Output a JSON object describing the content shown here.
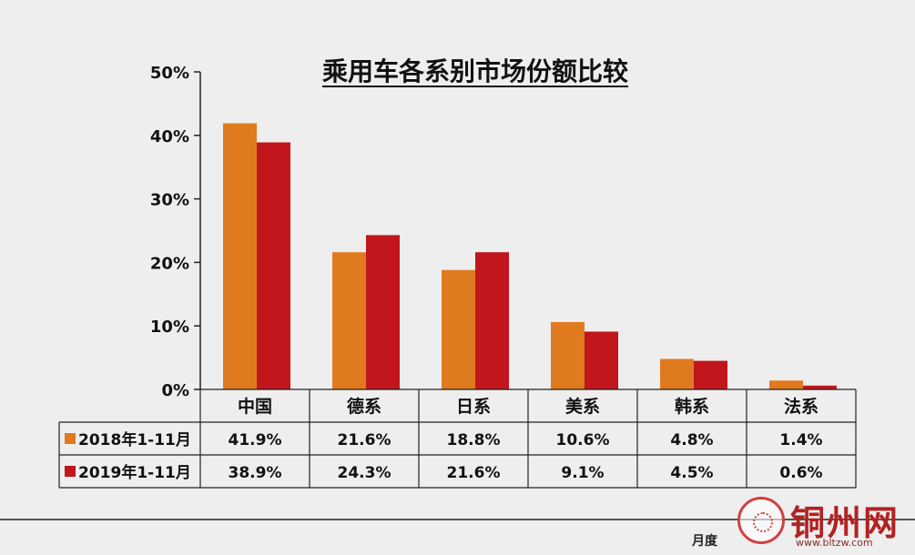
{
  "chart_data": {
    "type": "bar",
    "title": "乘用车各系别市场份额比较",
    "categories": [
      "中国",
      "德系",
      "日系",
      "美系",
      "韩系",
      "法系"
    ],
    "series": [
      {
        "name": "2018年1-11月",
        "values": [
          41.9,
          21.6,
          18.8,
          10.6,
          4.8,
          1.4
        ],
        "labels": [
          "41.9%",
          "21.6%",
          "18.8%",
          "10.6%",
          "4.8%",
          "1.4%"
        ],
        "color": "#e07a1f"
      },
      {
        "name": "2019年1-11月",
        "values": [
          38.9,
          24.3,
          21.6,
          9.1,
          4.5,
          0.6
        ],
        "labels": [
          "38.9%",
          "24.3%",
          "21.6%",
          "9.1%",
          "4.5%",
          "0.6%"
        ],
        "color": "#c0161c"
      }
    ],
    "yticks": [
      "0%",
      "10%",
      "20%",
      "30%",
      "40%",
      "50%"
    ],
    "ylim": [
      0,
      50
    ],
    "grid": false,
    "legend": "data-table"
  },
  "footer": {
    "text": "月度"
  },
  "watermark": {
    "text": "铜州网",
    "url": "www.bltzw.com"
  }
}
